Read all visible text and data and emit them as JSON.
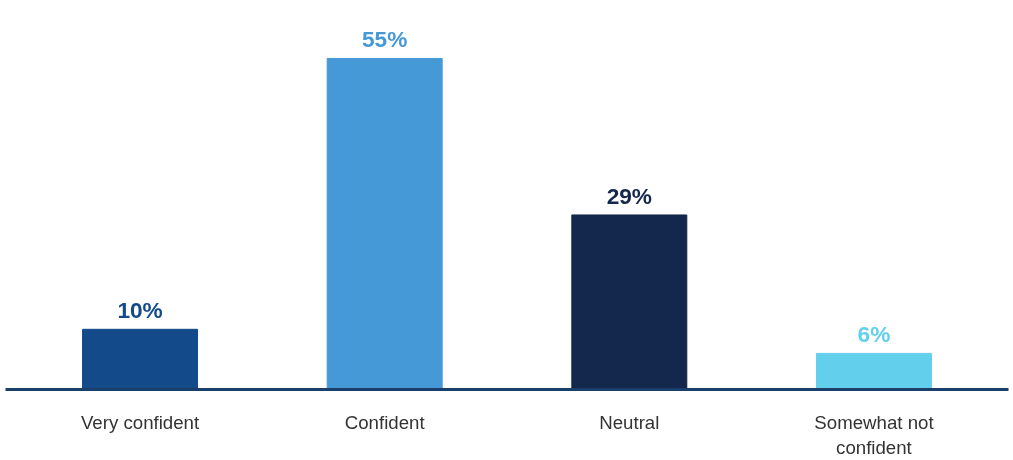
{
  "chart_data": {
    "type": "bar",
    "categories": [
      "Very confident",
      "Confident",
      "Neutral",
      "Somewhat not confident"
    ],
    "values": [
      10,
      55,
      29,
      6
    ],
    "colors": [
      "#134a8a",
      "#4599d6",
      "#14284d",
      "#62cfec"
    ],
    "value_labels": [
      "10%",
      "55%",
      "29%",
      "6%"
    ],
    "grid": false
  }
}
